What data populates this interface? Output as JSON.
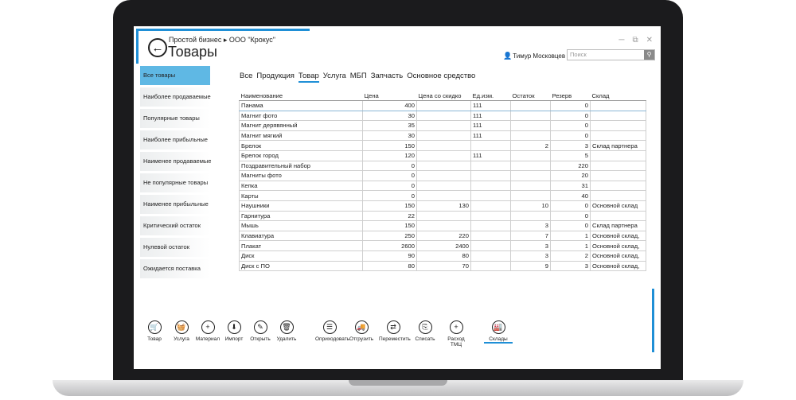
{
  "app": {
    "breadcrumb": "Простой бизнес  ▸  ООО \"Крокус\"",
    "title": "Товары",
    "user_name": "Тимур Московцев",
    "search_placeholder": "Поиск"
  },
  "sidebar": {
    "items": [
      {
        "label": "Все товары",
        "active": true
      },
      {
        "label": "Наиболее продаваемые"
      },
      {
        "label": "Популярные товары"
      },
      {
        "label": "Наиболее прибыльные"
      },
      {
        "label": "Наименее продаваемые"
      },
      {
        "label": "Не популярные товары"
      },
      {
        "label": "Наименее прибыльные"
      },
      {
        "label": "Критический остаток"
      },
      {
        "label": "Нулевой остаток"
      },
      {
        "label": "Ожидается поставка"
      }
    ]
  },
  "tabs": [
    "Все",
    "Продукция",
    "Товар",
    "Услуга",
    "МБП",
    "Запчасть",
    "Основное средство"
  ],
  "active_tab": "Товар",
  "table": {
    "columns": [
      "Наименование",
      "Цена",
      "Цена со скидко",
      "Ед.изм.",
      "Остаток",
      "Резерв",
      "Склад"
    ],
    "rows": [
      [
        "Панама",
        "400",
        "",
        "111",
        "",
        "0",
        ""
      ],
      [
        "Магнит фото",
        "30",
        "",
        "111",
        "",
        "0",
        ""
      ],
      [
        "Магнит дерявянный",
        "35",
        "",
        "111",
        "",
        "0",
        ""
      ],
      [
        "Магнит мягкий",
        "30",
        "",
        "111",
        "",
        "0",
        ""
      ],
      [
        "Брелок",
        "150",
        "",
        "",
        "2",
        "3",
        "Склад партнера"
      ],
      [
        "Брелок город",
        "120",
        "",
        "111",
        "",
        "5",
        ""
      ],
      [
        "Поздравительный набор",
        "0",
        "",
        "",
        "",
        "220",
        ""
      ],
      [
        "Магниты фото",
        "0",
        "",
        "",
        "",
        "20",
        ""
      ],
      [
        "Кепка",
        "0",
        "",
        "",
        "",
        "31",
        ""
      ],
      [
        "Карты",
        "0",
        "",
        "",
        "",
        "40",
        ""
      ],
      [
        "Наушники",
        "150",
        "130",
        "",
        "10",
        "0",
        "Основной склад"
      ],
      [
        "Гарнитура",
        "22",
        "",
        "",
        "",
        "0",
        ""
      ],
      [
        "Мышь",
        "150",
        "",
        "",
        "3",
        "0",
        "Склад партнера"
      ],
      [
        "Клавиатура",
        "250",
        "220",
        "",
        "7",
        "1",
        "Основной склад,"
      ],
      [
        "Плакат",
        "2600",
        "2400",
        "",
        "3",
        "1",
        "Основной склад,"
      ],
      [
        "Диск",
        "90",
        "80",
        "",
        "3",
        "2",
        "Основной склад,"
      ],
      [
        "Диск с ПО",
        "80",
        "70",
        "",
        "9",
        "3",
        "Основной склад,"
      ]
    ]
  },
  "toolbar": [
    {
      "label": "Товар",
      "icon": "cart-icon"
    },
    {
      "label": "Услуга",
      "icon": "basket-icon"
    },
    {
      "label": "Материал",
      "icon": "plus-icon"
    },
    {
      "label": "Импорт",
      "icon": "import-icon"
    },
    {
      "label": "Открыть",
      "icon": "pencil-icon"
    },
    {
      "label": "Удалить",
      "icon": "trash-icon"
    },
    {
      "label": "Оприходовать",
      "icon": "receive-icon"
    },
    {
      "label": "Отгрузить",
      "icon": "truck-icon"
    },
    {
      "label": "Переместить",
      "icon": "move-icon"
    },
    {
      "label": "Списать",
      "icon": "writeoff-icon"
    },
    {
      "label": "Расход ТМЦ",
      "icon": "plus-icon"
    },
    {
      "label": "Склады",
      "icon": "warehouse-icon"
    }
  ],
  "colors": {
    "accent": "#1f8fd6",
    "active_sidebar": "#5fb8e4"
  }
}
